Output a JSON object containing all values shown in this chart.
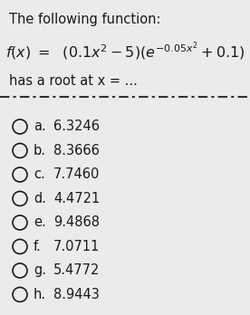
{
  "background_color": "#ebebeb",
  "title_line1": "The following function:",
  "subtitle": "has a root at x = ...",
  "options": [
    {
      "label": "a.",
      "value": "6.3246"
    },
    {
      "label": "b.",
      "value": "8.3666"
    },
    {
      "label": "c.",
      "value": "7.7460"
    },
    {
      "label": "d.",
      "value": "4.4721"
    },
    {
      "label": "e.",
      "value": "9.4868"
    },
    {
      "label": "f.",
      "value": "7.0711"
    },
    {
      "label": "g.",
      "value": "5.4772"
    },
    {
      "label": "h.",
      "value": "8.9443"
    }
  ],
  "font_color": "#1a1a1a",
  "circle_color": "#1a1a1a",
  "divider_color": "#333333",
  "title_fontsize": 10.5,
  "formula_fontsize": 11.5,
  "subtitle_fontsize": 10.5,
  "option_fontsize": 10.5
}
